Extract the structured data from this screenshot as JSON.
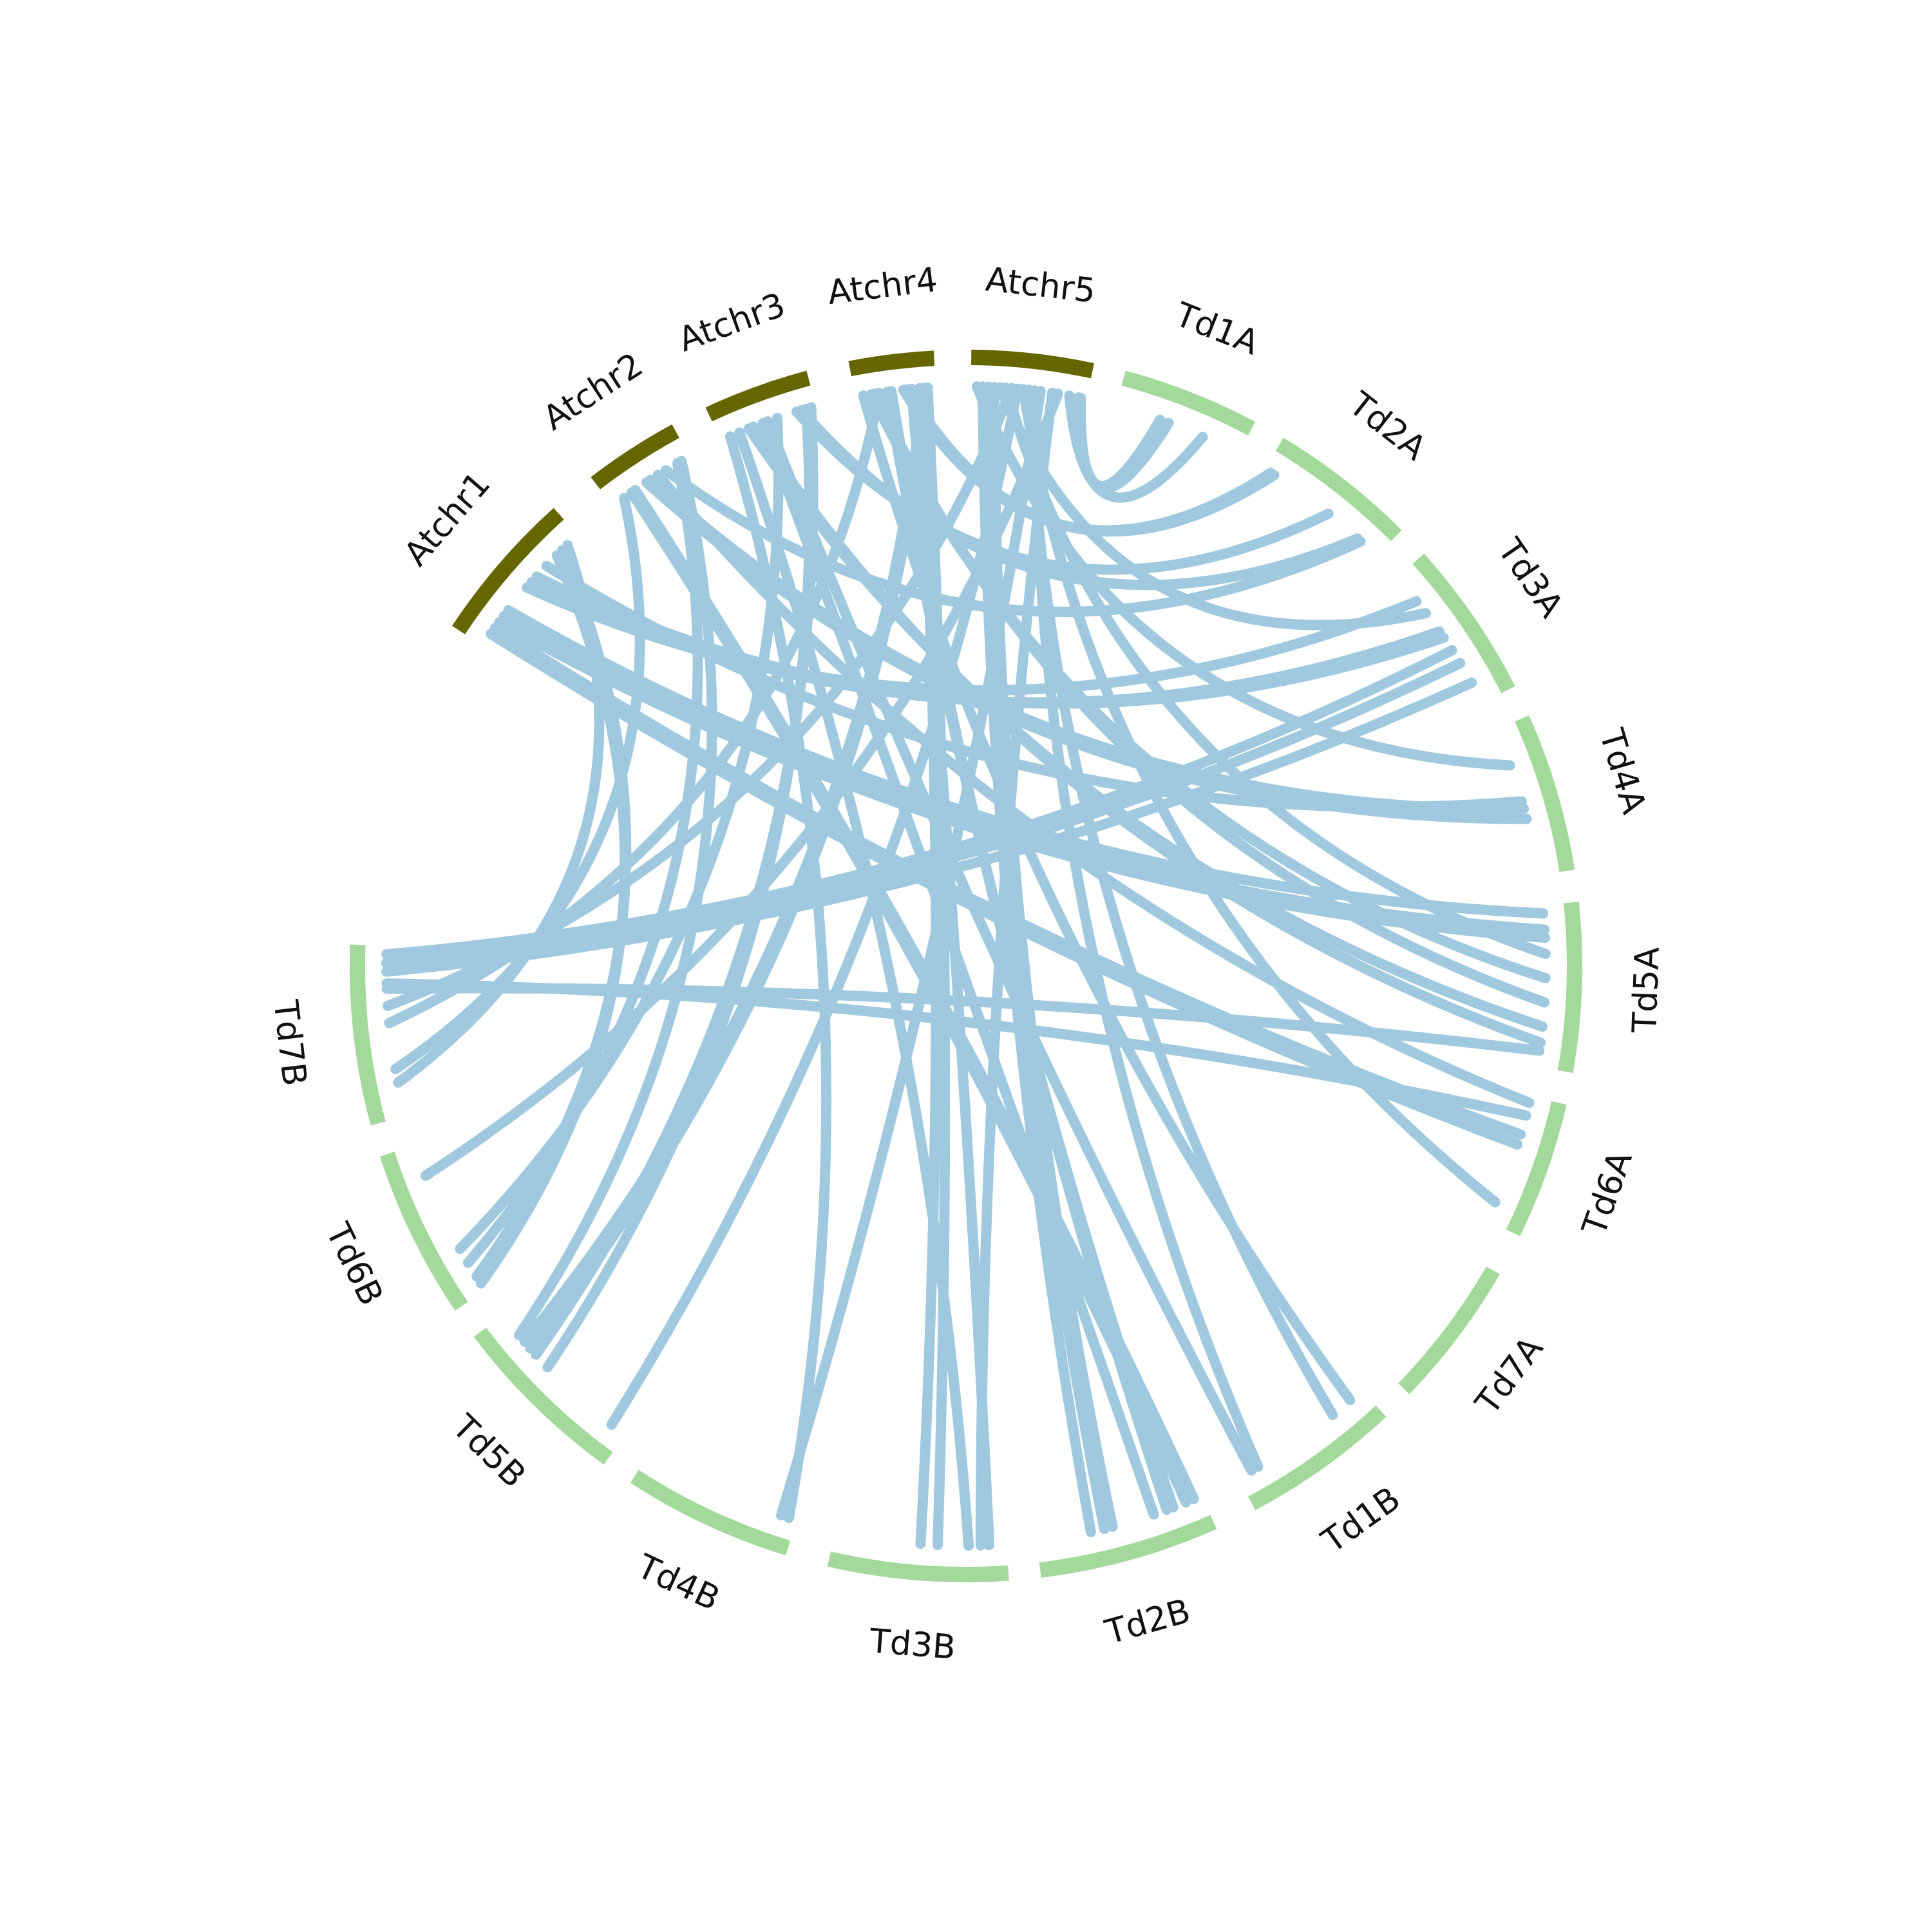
{
  "colors": {
    "arabidopsis": "#666600",
    "wheat": "#a3d99b",
    "link": "#a0c9e0",
    "label": "#111111",
    "background": "#ffffff"
  },
  "chromosomes": [
    {
      "id": "Atchr1",
      "label": "Atchr1",
      "group": "arabidopsis",
      "start_deg": 303.5,
      "end_deg": 318.0
    },
    {
      "id": "Atchr2",
      "label": "Atchr2",
      "group": "arabidopsis",
      "start_deg": 322.5,
      "end_deg": 331.5
    },
    {
      "id": "Atchr3",
      "label": "Atchr3",
      "group": "arabidopsis",
      "start_deg": 335.0,
      "end_deg": 345.0
    },
    {
      "id": "Atchr4",
      "label": "Atchr4",
      "group": "arabidopsis",
      "start_deg": 349.0,
      "end_deg": 357.0
    },
    {
      "id": "Atchr5",
      "label": "Atchr5",
      "group": "arabidopsis",
      "start_deg": 0.5,
      "end_deg": 12.0
    },
    {
      "id": "Td1A",
      "label": "Td1A",
      "group": "wheat",
      "start_deg": 15.0,
      "end_deg": 28.0
    },
    {
      "id": "Td2A",
      "label": "Td2A",
      "group": "wheat",
      "start_deg": 31.0,
      "end_deg": 45.0
    },
    {
      "id": "Td3A",
      "label": "Td3A",
      "group": "wheat",
      "start_deg": 48.0,
      "end_deg": 63.0
    },
    {
      "id": "Td4A",
      "label": "Td4A",
      "group": "wheat",
      "start_deg": 66.0,
      "end_deg": 81.0
    },
    {
      "id": "Td5A",
      "label": "Td5A",
      "group": "wheat",
      "start_deg": 84.0,
      "end_deg": 100.0
    },
    {
      "id": "Td6A",
      "label": "Td6A",
      "group": "wheat",
      "start_deg": 103.0,
      "end_deg": 116.0
    },
    {
      "id": "Td7A",
      "label": "Td7A",
      "group": "wheat",
      "start_deg": 120.0,
      "end_deg": 134.0
    },
    {
      "id": "Td1B",
      "label": "Td1B",
      "group": "wheat",
      "start_deg": 137.0,
      "end_deg": 152.0
    },
    {
      "id": "Td2B",
      "label": "Td2B",
      "group": "wheat",
      "start_deg": 156.0,
      "end_deg": 173.0
    },
    {
      "id": "Td3B",
      "label": "Td3B",
      "group": "wheat",
      "start_deg": 176.0,
      "end_deg": 193.0
    },
    {
      "id": "Td4B",
      "label": "Td4B",
      "group": "wheat",
      "start_deg": 197.0,
      "end_deg": 213.0
    },
    {
      "id": "Td5B",
      "label": "Td5B",
      "group": "wheat",
      "start_deg": 216.0,
      "end_deg": 233.0
    },
    {
      "id": "Td6B",
      "label": "Td6B",
      "group": "wheat",
      "start_deg": 236.0,
      "end_deg": 252.0
    },
    {
      "id": "Td7B",
      "label": "Td7B",
      "group": "wheat",
      "start_deg": 255.0,
      "end_deg": 272.0
    }
  ],
  "links": [
    {
      "from": "Atchr5",
      "from_pos": 0.95,
      "to": "Td1A",
      "to_pos": 0.35
    },
    {
      "from": "Atchr5",
      "from_pos": 0.93,
      "to": "Td1A",
      "to_pos": 0.42
    },
    {
      "from": "Atchr5",
      "from_pos": 0.85,
      "to": "Td1A",
      "to_pos": 0.7
    },
    {
      "from": "Atchr4",
      "from_pos": 0.6,
      "to": "Td2A",
      "to_pos": 0.05
    },
    {
      "from": "Atchr4",
      "from_pos": 0.65,
      "to": "Td2A",
      "to_pos": 0.08
    },
    {
      "from": "Atchr3",
      "from_pos": 0.8,
      "to": "Td2A",
      "to_pos": 0.55
    },
    {
      "from": "Atchr3",
      "from_pos": 0.85,
      "to": "Td2A",
      "to_pos": 0.82
    },
    {
      "from": "Atchr2",
      "from_pos": 0.7,
      "to": "Td2A",
      "to_pos": 0.85
    },
    {
      "from": "Atchr1",
      "from_pos": 0.5,
      "to": "Td3A",
      "to_pos": 0.2
    },
    {
      "from": "Atchr1",
      "from_pos": 0.55,
      "to": "Td3A",
      "to_pos": 0.45
    },
    {
      "from": "Atchr1",
      "from_pos": 0.6,
      "to": "Td3A",
      "to_pos": 0.5
    },
    {
      "from": "Td7B",
      "from_pos": 0.95,
      "to": "Td3A",
      "to_pos": 0.6
    },
    {
      "from": "Td7B",
      "from_pos": 0.9,
      "to": "Td3A",
      "to_pos": 0.7
    },
    {
      "from": "Td7B",
      "from_pos": 0.85,
      "to": "Td3A",
      "to_pos": 0.85
    },
    {
      "from": "Atchr2",
      "from_pos": 0.5,
      "to": "Td4A",
      "to_pos": 0.55
    },
    {
      "from": "Atchr2",
      "from_pos": 0.45,
      "to": "Td4A",
      "to_pos": 0.62
    },
    {
      "from": "Atchr1",
      "from_pos": 0.3,
      "to": "Td5A",
      "to_pos": 0.05
    },
    {
      "from": "Atchr1",
      "from_pos": 0.25,
      "to": "Td5A",
      "to_pos": 0.15
    },
    {
      "from": "Atchr1",
      "from_pos": 0.2,
      "to": "Td5A",
      "to_pos": 0.2
    },
    {
      "from": "Atchr5",
      "from_pos": 0.3,
      "to": "Td5A",
      "to_pos": 0.3
    },
    {
      "from": "Atchr4",
      "from_pos": 0.2,
      "to": "Td5A",
      "to_pos": 0.45
    },
    {
      "from": "Atchr4",
      "from_pos": 0.25,
      "to": "Td5A",
      "to_pos": 0.6
    },
    {
      "from": "Atchr3",
      "from_pos": 0.3,
      "to": "Td5A",
      "to_pos": 0.75
    },
    {
      "from": "Atchr3",
      "from_pos": 0.35,
      "to": "Td5A",
      "to_pos": 0.85
    },
    {
      "from": "Atchr1",
      "from_pos": 0.15,
      "to": "Td6A",
      "to_pos": 0.3
    },
    {
      "from": "Atchr1",
      "from_pos": 0.1,
      "to": "Td6A",
      "to_pos": 0.38
    },
    {
      "from": "Atchr5",
      "from_pos": 0.45,
      "to": "Td6A",
      "to_pos": 0.85
    },
    {
      "from": "Atchr5",
      "from_pos": 0.5,
      "to": "Td1B",
      "to_pos": 0.25
    },
    {
      "from": "Atchr5",
      "from_pos": 0.55,
      "to": "Td1B",
      "to_pos": 0.85
    },
    {
      "from": "Atchr3",
      "from_pos": 0.5,
      "to": "Td1B",
      "to_pos": 0.9
    },
    {
      "from": "Atchr4",
      "from_pos": 0.4,
      "to": "Td2B",
      "to_pos": 0.18
    },
    {
      "from": "Atchr4",
      "from_pos": 0.45,
      "to": "Td2B",
      "to_pos": 0.22
    },
    {
      "from": "Atchr5",
      "from_pos": 0.2,
      "to": "Td2B",
      "to_pos": 0.55
    },
    {
      "from": "Atchr5",
      "from_pos": 0.15,
      "to": "Td2B",
      "to_pos": 0.6
    },
    {
      "from": "Atchr5",
      "from_pos": 0.1,
      "to": "Td2B",
      "to_pos": 0.68
    },
    {
      "from": "Atchr2",
      "from_pos": 0.3,
      "to": "Td2B",
      "to_pos": 0.05
    },
    {
      "from": "Atchr2",
      "from_pos": 0.25,
      "to": "Td2B",
      "to_pos": 0.1
    },
    {
      "from": "Atchr5",
      "from_pos": 0.7,
      "to": "Td3B",
      "to_pos": 0.15
    },
    {
      "from": "Atchr3",
      "from_pos": 0.2,
      "to": "Td3B",
      "to_pos": 0.22
    },
    {
      "from": "Atchr4",
      "from_pos": 0.9,
      "to": "Td3B",
      "to_pos": 0.4
    },
    {
      "from": "Atchr4",
      "from_pos": 0.8,
      "to": "Td3B",
      "to_pos": 0.5
    },
    {
      "from": "Atchr4",
      "from_pos": 0.7,
      "to": "Td3B",
      "to_pos": 0.1
    },
    {
      "from": "Atchr5",
      "from_pos": 0.6,
      "to": "Td4B",
      "to_pos": 0.1
    },
    {
      "from": "Atchr5",
      "from_pos": 0.4,
      "to": "Td5B",
      "to_pos": 0.1
    },
    {
      "from": "Atchr2",
      "from_pos": 0.85,
      "to": "Td6B",
      "to_pos": 0.2
    },
    {
      "from": "Atchr3",
      "from_pos": 0.6,
      "to": "Td6B",
      "to_pos": 0.3
    },
    {
      "from": "Atchr5",
      "from_pos": 0.75,
      "to": "Td6B",
      "to_pos": 0.8
    },
    {
      "from": "Atchr4",
      "from_pos": 0.85,
      "to": "Td5B",
      "to_pos": 0.8
    },
    {
      "from": "Atchr4",
      "from_pos": 0.9,
      "to": "Td5B",
      "to_pos": 0.75
    },
    {
      "from": "Atchr3",
      "from_pos": 0.95,
      "to": "Td5B",
      "to_pos": 0.7
    },
    {
      "from": "Atchr3",
      "from_pos": 0.9,
      "to": "Td5B",
      "to_pos": 0.6
    },
    {
      "from": "Atchr1",
      "from_pos": 0.8,
      "to": "Td6B",
      "to_pos": 0.05
    },
    {
      "from": "Atchr1",
      "from_pos": 0.85,
      "to": "Td6B",
      "to_pos": 0.1
    },
    {
      "from": "Atchr1",
      "from_pos": 0.9,
      "to": "Td7B",
      "to_pos": 0.2
    },
    {
      "from": "Atchr2",
      "from_pos": 0.15,
      "to": "Td7B",
      "to_pos": 0.28
    },
    {
      "from": "Atchr4",
      "from_pos": 0.3,
      "to": "Td7B",
      "to_pos": 0.55
    },
    {
      "from": "Atchr5",
      "from_pos": 0.35,
      "to": "Td7B",
      "to_pos": 0.65
    },
    {
      "from": "Td7B",
      "from_pos": 0.75,
      "to": "Td5A",
      "to_pos": 0.9
    },
    {
      "from": "Td7B",
      "from_pos": 0.78,
      "to": "Td6A",
      "to_pos": 0.15
    },
    {
      "from": "Atchr2",
      "from_pos": 0.6,
      "to": "Td6A",
      "to_pos": 0.05
    },
    {
      "from": "Atchr4",
      "from_pos": 0.1,
      "to": "Td1B",
      "to_pos": 0.1
    },
    {
      "from": "Atchr3",
      "from_pos": 0.45,
      "to": "Td2B",
      "to_pos": 0.3
    },
    {
      "from": "Atchr5",
      "from_pos": 0.05,
      "to": "Td4A",
      "to_pos": 0.25
    },
    {
      "from": "Atchr5",
      "from_pos": 0.25,
      "to": "Td3A",
      "to_pos": 0.3
    },
    {
      "from": "Atchr1",
      "from_pos": 0.7,
      "to": "Td4A",
      "to_pos": 0.5
    },
    {
      "from": "Atchr3",
      "from_pos": 0.1,
      "to": "Td4B",
      "to_pos": 0.05
    },
    {
      "from": "Atchr2",
      "from_pos": 0.9,
      "to": "Td5B",
      "to_pos": 0.85
    }
  ]
}
